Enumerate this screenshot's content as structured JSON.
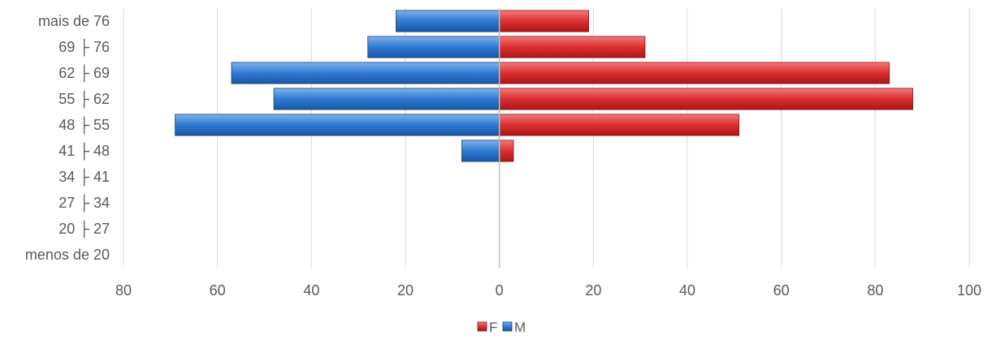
{
  "chart_data": {
    "type": "bar",
    "orientation": "horizontal",
    "title": "",
    "xlabel": "",
    "ylabel": "",
    "categories": [
      "menos de 20",
      "20 ├ 27",
      "27 ├ 34",
      "34 ├ 41",
      "41 ├ 48",
      "48 ├ 55",
      "55 ├ 62",
      "62 ├ 69",
      "69 ├ 76",
      "mais de 76"
    ],
    "series": [
      {
        "name": "F",
        "color": "#e8292b",
        "values": [
          0,
          0,
          0,
          0,
          3,
          51,
          88,
          83,
          31,
          19
        ]
      },
      {
        "name": "M",
        "color": "#2e7bd6",
        "values": [
          0,
          0,
          0,
          0,
          -8,
          -69,
          -48,
          -57,
          -28,
          -22
        ]
      }
    ],
    "xlim": [
      -80,
      100
    ],
    "xticks": [
      -80,
      -60,
      -40,
      -20,
      0,
      20,
      40,
      60,
      80,
      100
    ],
    "xtick_labels": [
      "80",
      "60",
      "40",
      "20",
      "0",
      "20",
      "40",
      "60",
      "80",
      "100"
    ],
    "grid": "vertical",
    "legend": "bottom-center"
  }
}
